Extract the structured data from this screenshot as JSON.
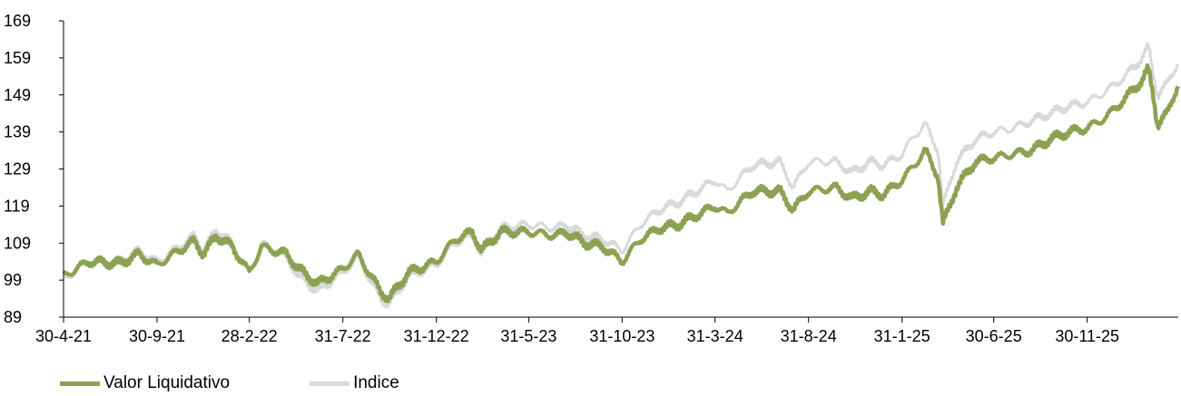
{
  "chart_data": {
    "type": "line",
    "title": "",
    "xlabel": "",
    "ylabel": "",
    "ylim": [
      89,
      169
    ],
    "y_ticks": [
      89,
      99,
      109,
      119,
      129,
      139,
      149,
      159,
      169
    ],
    "x_tick_labels": [
      "30-4-21",
      "30-9-21",
      "28-2-22",
      "31-7-22",
      "31-12-22",
      "31-5-23",
      "31-10-23",
      "31-3-24",
      "31-8-24",
      "31-1-25",
      "30-6-25",
      "30-11-25"
    ],
    "x_tick_dates": [
      "2021-04-30",
      "2021-09-30",
      "2022-02-28",
      "2022-07-31",
      "2022-12-31",
      "2023-05-31",
      "2023-10-31",
      "2024-03-31",
      "2024-08-31",
      "2025-01-31",
      "2025-06-30",
      "2025-11-30"
    ],
    "x_range": [
      "2021-04-30",
      "2026-04-28"
    ],
    "grid": false,
    "legend_position": "bottom-left",
    "series": [
      {
        "name": "Valor Liquidativo",
        "color": "#8ca252",
        "points": [
          [
            "2021-04-30",
            100
          ],
          [
            "2021-06-10",
            104
          ],
          [
            "2021-07-31",
            103.5
          ],
          [
            "2021-08-31",
            106
          ],
          [
            "2021-09-30",
            103
          ],
          [
            "2021-10-31",
            106.5
          ],
          [
            "2021-11-30",
            109.5
          ],
          [
            "2021-12-15",
            106
          ],
          [
            "2022-01-05",
            111
          ],
          [
            "2022-01-31",
            108
          ],
          [
            "2022-02-28",
            101
          ],
          [
            "2022-03-20",
            108
          ],
          [
            "2022-04-30",
            106
          ],
          [
            "2022-05-20",
            102
          ],
          [
            "2022-06-20",
            98
          ],
          [
            "2022-07-31",
            102
          ],
          [
            "2022-08-25",
            106
          ],
          [
            "2022-09-30",
            96
          ],
          [
            "2022-10-15",
            94
          ],
          [
            "2022-11-15",
            101
          ],
          [
            "2022-12-31",
            104
          ],
          [
            "2023-01-31",
            110
          ],
          [
            "2023-02-28",
            112
          ],
          [
            "2023-03-15",
            107
          ],
          [
            "2023-04-15",
            112
          ],
          [
            "2023-05-31",
            112
          ],
          [
            "2023-07-15",
            111
          ],
          [
            "2023-07-31",
            112
          ],
          [
            "2023-08-31",
            109
          ],
          [
            "2023-09-30",
            108
          ],
          [
            "2023-10-31",
            104
          ],
          [
            "2023-11-30",
            110
          ],
          [
            "2023-12-31",
            113
          ],
          [
            "2024-01-31",
            114
          ],
          [
            "2024-03-31",
            119
          ],
          [
            "2024-04-20",
            117
          ],
          [
            "2024-05-31",
            123
          ],
          [
            "2024-07-15",
            123
          ],
          [
            "2024-08-06",
            118
          ],
          [
            "2024-08-31",
            123
          ],
          [
            "2024-10-15",
            124
          ],
          [
            "2024-11-10",
            121
          ],
          [
            "2024-12-10",
            123
          ],
          [
            "2024-12-31",
            122
          ],
          [
            "2025-01-31",
            126
          ],
          [
            "2025-02-20",
            130
          ],
          [
            "2025-03-10",
            134
          ],
          [
            "2025-03-31",
            127
          ],
          [
            "2025-04-08",
            114
          ],
          [
            "2025-04-30",
            124
          ],
          [
            "2025-05-31",
            131
          ],
          [
            "2025-06-30",
            132
          ],
          [
            "2025-07-31",
            133
          ],
          [
            "2025-08-31",
            134
          ],
          [
            "2025-09-30",
            137
          ],
          [
            "2025-10-31",
            139
          ],
          [
            "2025-11-30",
            140
          ],
          [
            "2025-12-31",
            143
          ],
          [
            "2026-01-31",
            148
          ],
          [
            "2026-02-28",
            153
          ],
          [
            "2026-03-10",
            156
          ],
          [
            "2026-03-18",
            149
          ],
          [
            "2026-03-25",
            141
          ],
          [
            "2026-04-10",
            144
          ],
          [
            "2026-04-28",
            152
          ]
        ]
      },
      {
        "name": "Indice",
        "color": "#d9d9d9",
        "points": [
          [
            "2021-04-30",
            99
          ],
          [
            "2021-06-10",
            104
          ],
          [
            "2021-07-31",
            104
          ],
          [
            "2021-08-31",
            107
          ],
          [
            "2021-09-30",
            104
          ],
          [
            "2021-10-31",
            107.5
          ],
          [
            "2021-11-30",
            111
          ],
          [
            "2021-12-15",
            107
          ],
          [
            "2022-01-05",
            112.5
          ],
          [
            "2022-01-31",
            109
          ],
          [
            "2022-02-28",
            101
          ],
          [
            "2022-03-20",
            109
          ],
          [
            "2022-04-30",
            105
          ],
          [
            "2022-05-20",
            100
          ],
          [
            "2022-06-20",
            96
          ],
          [
            "2022-07-31",
            101
          ],
          [
            "2022-08-25",
            105
          ],
          [
            "2022-09-30",
            94
          ],
          [
            "2022-10-15",
            92.5
          ],
          [
            "2022-11-15",
            100
          ],
          [
            "2022-12-31",
            103
          ],
          [
            "2023-01-31",
            109
          ],
          [
            "2023-02-28",
            111
          ],
          [
            "2023-03-15",
            106
          ],
          [
            "2023-04-15",
            113
          ],
          [
            "2023-05-31",
            114
          ],
          [
            "2023-07-15",
            113
          ],
          [
            "2023-07-31",
            114
          ],
          [
            "2023-08-31",
            111
          ],
          [
            "2023-09-30",
            110
          ],
          [
            "2023-10-31",
            107
          ],
          [
            "2023-11-30",
            114
          ],
          [
            "2023-12-31",
            118
          ],
          [
            "2024-01-31",
            120
          ],
          [
            "2024-03-31",
            126
          ],
          [
            "2024-04-20",
            123
          ],
          [
            "2024-05-31",
            130
          ],
          [
            "2024-07-15",
            131
          ],
          [
            "2024-08-06",
            124
          ],
          [
            "2024-08-31",
            131
          ],
          [
            "2024-10-15",
            131
          ],
          [
            "2024-11-10",
            128
          ],
          [
            "2024-12-10",
            131
          ],
          [
            "2024-12-31",
            130
          ],
          [
            "2025-01-31",
            133
          ],
          [
            "2025-02-20",
            138
          ],
          [
            "2025-03-10",
            141
          ],
          [
            "2025-03-31",
            134
          ],
          [
            "2025-04-08",
            119
          ],
          [
            "2025-04-30",
            131
          ],
          [
            "2025-05-31",
            137
          ],
          [
            "2025-06-30",
            139
          ],
          [
            "2025-07-31",
            140
          ],
          [
            "2025-08-31",
            142
          ],
          [
            "2025-09-30",
            144
          ],
          [
            "2025-10-31",
            146
          ],
          [
            "2025-11-30",
            147
          ],
          [
            "2025-12-31",
            150
          ],
          [
            "2026-01-31",
            154
          ],
          [
            "2026-02-28",
            159
          ],
          [
            "2026-03-10",
            162
          ],
          [
            "2026-03-18",
            155
          ],
          [
            "2026-03-25",
            149
          ],
          [
            "2026-04-10",
            152
          ],
          [
            "2026-04-28",
            158
          ]
        ]
      }
    ]
  }
}
